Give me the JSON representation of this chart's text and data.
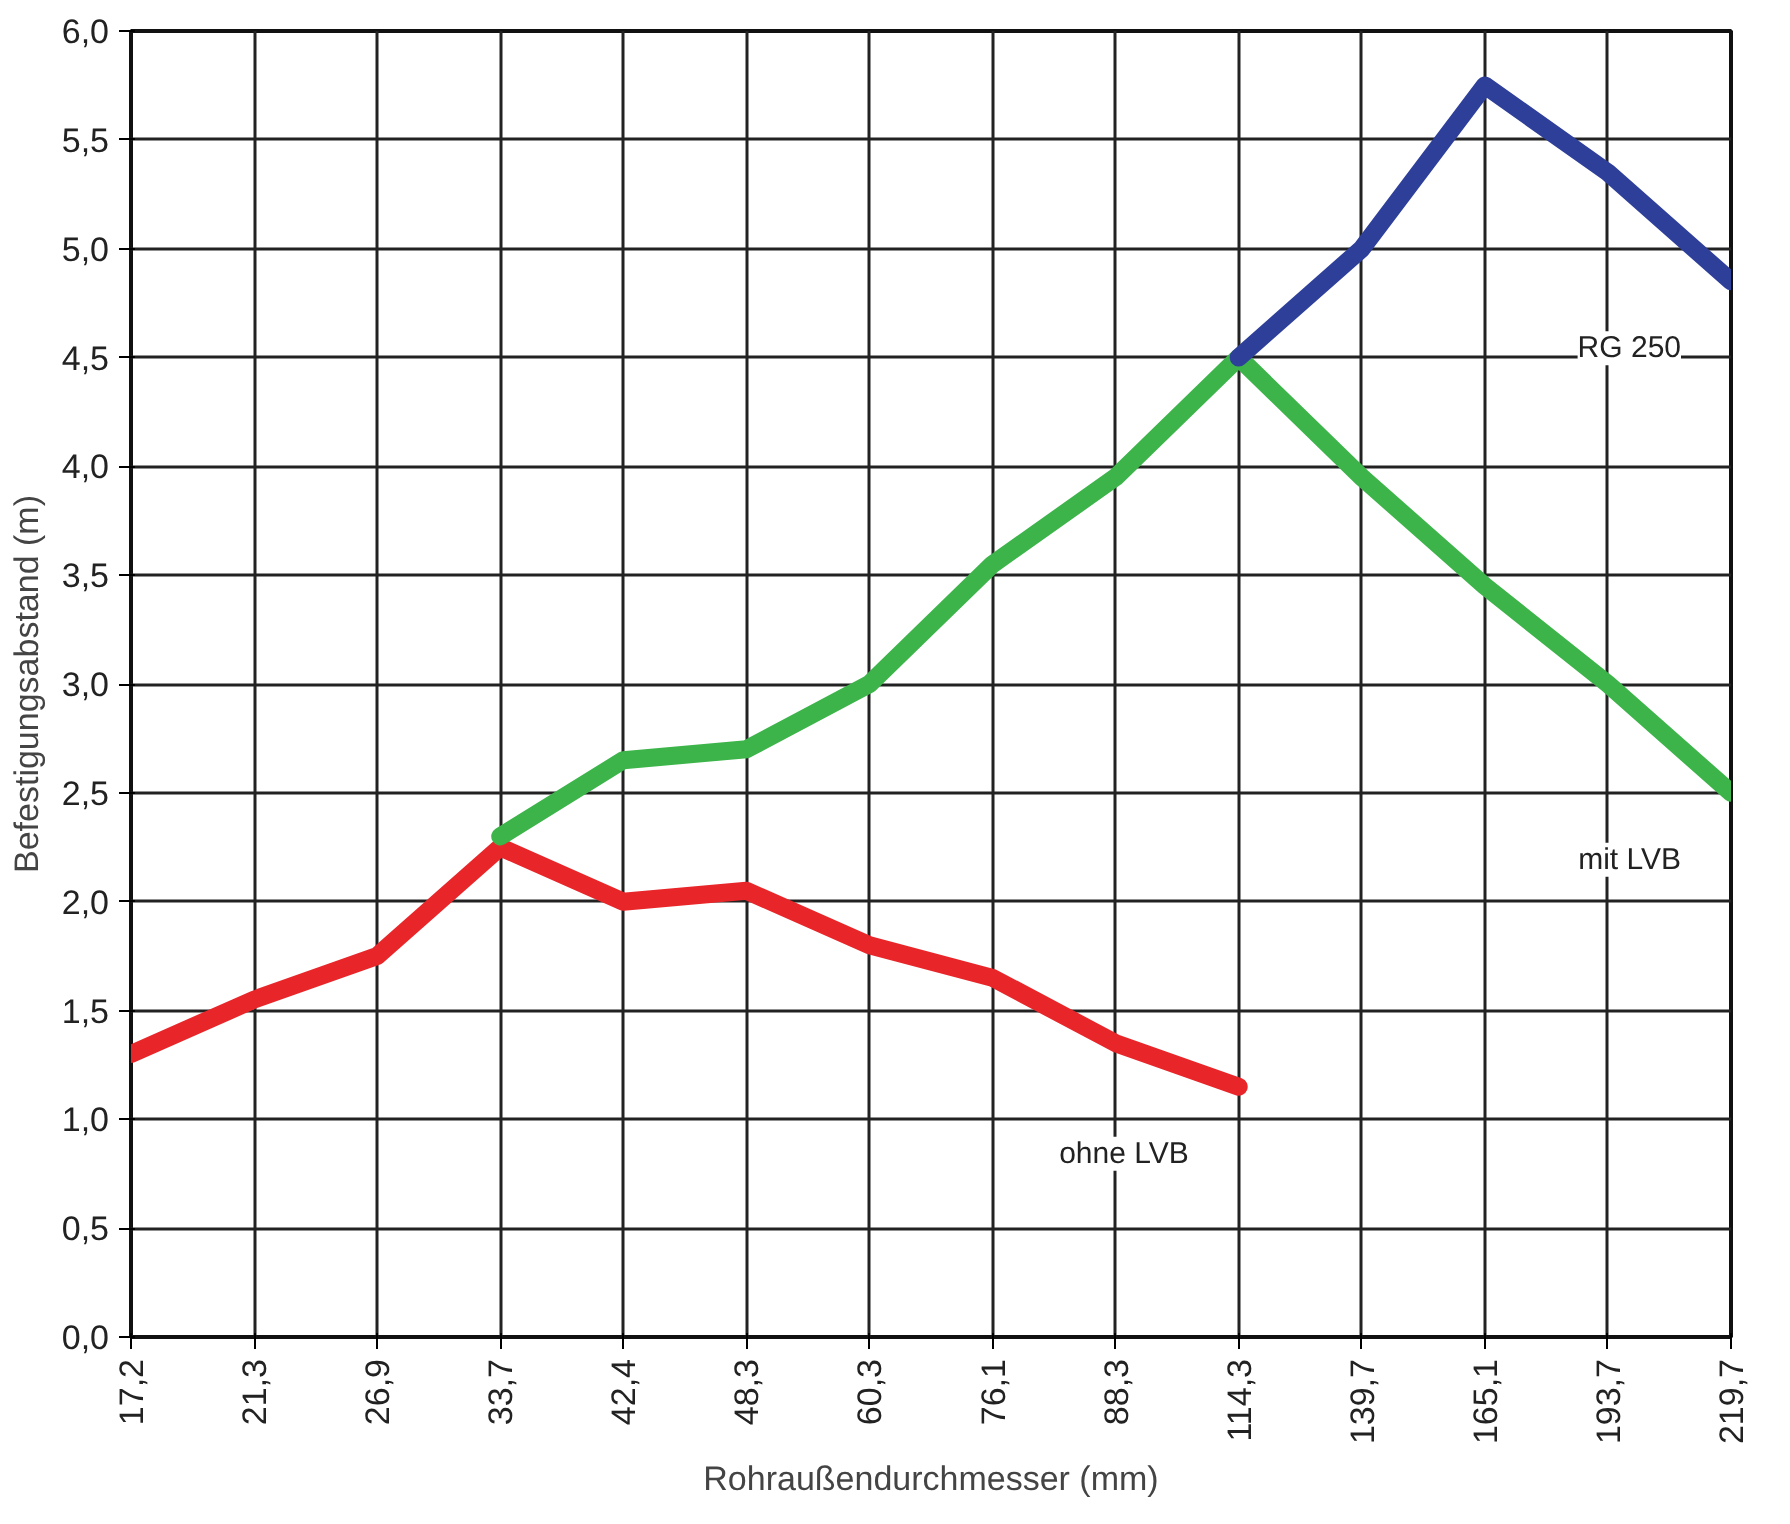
{
  "chart_data": {
    "type": "line",
    "xlabel": "Rohraußendurchmesser (mm)",
    "ylabel": "Befestigungsabstand (m)",
    "categories": [
      "17,2",
      "21,3",
      "26,9",
      "33,7",
      "42,4",
      "48,3",
      "60,3",
      "76,1",
      "88,3",
      "114,3",
      "139,7",
      "165,1",
      "193,7",
      "219,7"
    ],
    "series": [
      {
        "name": "ohne LVB",
        "color": "#e8262a",
        "values": [
          1.3,
          1.55,
          1.75,
          2.25,
          2.0,
          2.05,
          1.8,
          1.65,
          1.35,
          1.15,
          null,
          null,
          null,
          null
        ]
      },
      {
        "name": "mit LVB",
        "color": "#3cb44a",
        "values": [
          null,
          null,
          null,
          2.3,
          2.65,
          2.7,
          3.0,
          3.55,
          3.95,
          4.5,
          3.95,
          3.45,
          3.0,
          2.5
        ]
      },
      {
        "name": "RG 250",
        "color": "#2e3f9a",
        "values": [
          null,
          null,
          null,
          null,
          null,
          null,
          null,
          null,
          null,
          4.5,
          5.0,
          5.75,
          5.35,
          4.85
        ]
      }
    ],
    "ylim": [
      0,
      6
    ],
    "yticks": [
      {
        "value": 0,
        "label": "0,0"
      },
      {
        "value": 0.5,
        "label": "0,5"
      },
      {
        "value": 1,
        "label": "1,0"
      },
      {
        "value": 1.5,
        "label": "1,5"
      },
      {
        "value": 2,
        "label": "2,0"
      },
      {
        "value": 2.5,
        "label": "2,5"
      },
      {
        "value": 3,
        "label": "3,0"
      },
      {
        "value": 3.5,
        "label": "3,5"
      },
      {
        "value": 4,
        "label": "4,0"
      },
      {
        "value": 4.5,
        "label": "4,5"
      },
      {
        "value": 5,
        "label": "5,0"
      },
      {
        "value": 5.5,
        "label": "5,5"
      },
      {
        "value": 6,
        "label": "6,0"
      }
    ],
    "grid": true,
    "legend": false,
    "marker": "none",
    "line_style": "solid"
  }
}
